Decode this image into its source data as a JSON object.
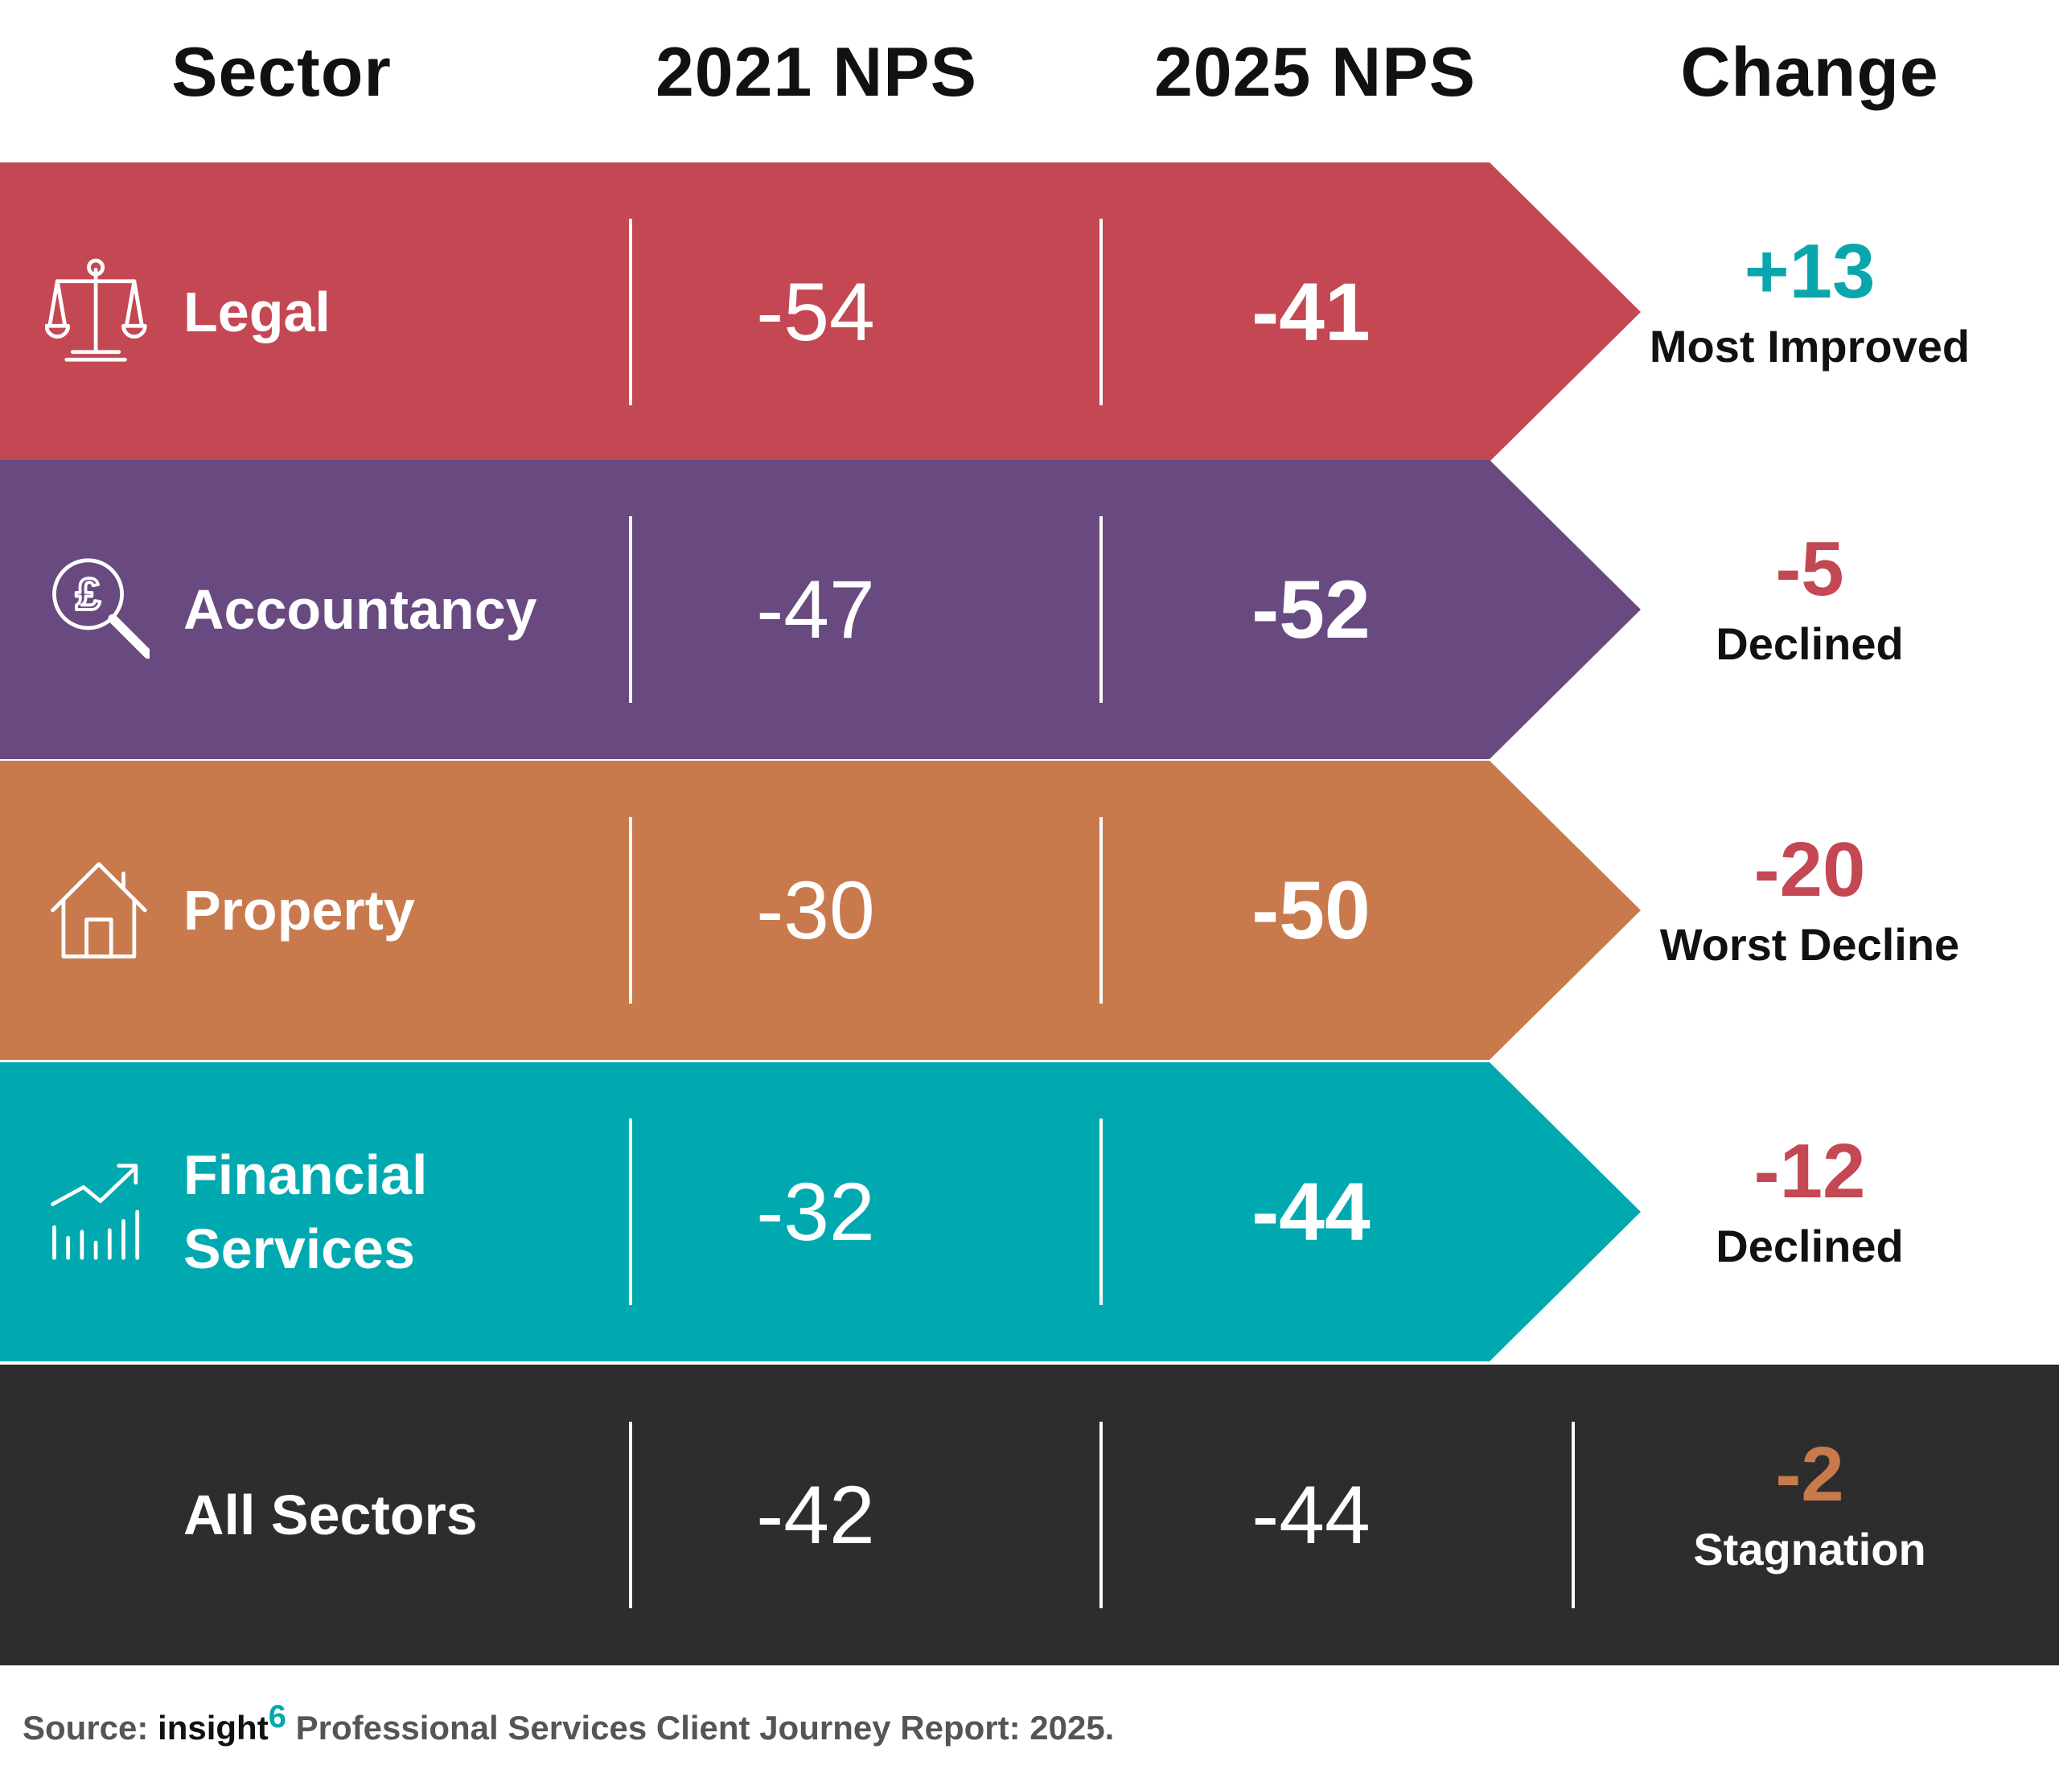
{
  "headers": {
    "sector": "Sector",
    "nps_2021": "2021 NPS",
    "nps_2025": "2025 NPS",
    "change": "Change"
  },
  "rows": [
    {
      "sector": "Legal",
      "icon": "scales-icon",
      "nps_2021": "-54",
      "nps_2025": "-41",
      "change": "+13",
      "caption": "Most Improved",
      "color": "#c44853",
      "change_color": "#0aa6ad"
    },
    {
      "sector": "Accountancy",
      "icon": "pound-magnifier-icon",
      "nps_2021": "-47",
      "nps_2025": "-52",
      "change": "-5",
      "caption": "Declined",
      "color": "#684a80",
      "change_color": "#c44853"
    },
    {
      "sector": "Property",
      "icon": "house-icon",
      "nps_2021": "-30",
      "nps_2025": "-50",
      "change": "-20",
      "caption": "Worst Decline",
      "color": "#c97a4d",
      "change_color": "#c44853"
    },
    {
      "sector": "Financial Services",
      "sector_lines": [
        "Financial",
        "Services"
      ],
      "icon": "growth-chart-icon",
      "nps_2021": "-32",
      "nps_2025": "-44",
      "change": "-12",
      "caption": "Declined",
      "color": "#00a9b0",
      "change_color": "#c44853"
    }
  ],
  "total": {
    "sector": "All Sectors",
    "nps_2021": "-42",
    "nps_2025": "-44",
    "change": "-2",
    "caption": "Stagnation",
    "color": "#2d2d2d",
    "change_color": "#c97a4d"
  },
  "source": {
    "prefix": "Source:",
    "brand": "insight",
    "brand_sup": "6",
    "text": "Professional Services Client Journey Report: 2025."
  },
  "chart_data": {
    "type": "table",
    "columns": [
      "Sector",
      "2021 NPS",
      "2025 NPS",
      "Change"
    ],
    "rows": [
      [
        "Legal",
        -54,
        -41,
        "+13",
        "Most Improved"
      ],
      [
        "Accountancy",
        -47,
        -52,
        "-5",
        "Declined"
      ],
      [
        "Property",
        -30,
        -50,
        "-20",
        "Worst Decline"
      ],
      [
        "Financial Services",
        -32,
        -44,
        "-12",
        "Declined"
      ],
      [
        "All Sectors",
        -42,
        -44,
        "-2",
        "Stagnation"
      ]
    ]
  }
}
